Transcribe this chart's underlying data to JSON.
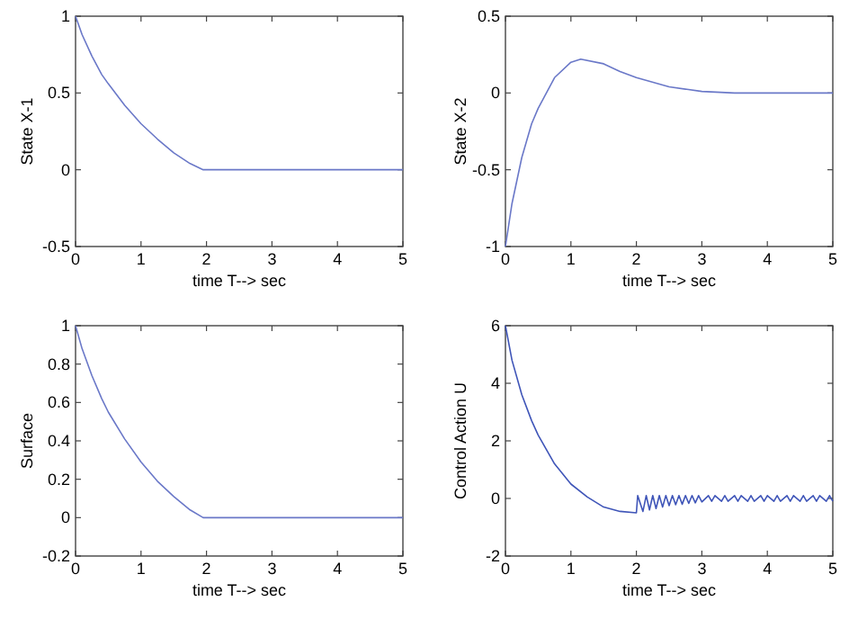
{
  "chart_data": [
    {
      "type": "line",
      "xlabel": "time T--> sec",
      "ylabel": "State X-1",
      "xlim": [
        0,
        5
      ],
      "xticks": [
        0,
        1,
        2,
        3,
        4,
        5
      ],
      "ylim": [
        -0.5,
        1
      ],
      "yticks": [
        -0.5,
        0,
        0.5,
        1
      ],
      "grid": false,
      "series": [
        {
          "color": "#6a78c8",
          "x": [
            0,
            0.1,
            0.25,
            0.4,
            0.5,
            0.75,
            1,
            1.25,
            1.5,
            1.75,
            1.95,
            2,
            2.5,
            3,
            3.5,
            4,
            4.5,
            5
          ],
          "values": [
            1,
            0.88,
            0.74,
            0.62,
            0.56,
            0.42,
            0.3,
            0.2,
            0.11,
            0.04,
            0,
            0,
            0,
            0,
            0,
            0,
            0,
            0
          ]
        }
      ]
    },
    {
      "type": "line",
      "xlabel": "time T--> sec",
      "ylabel": "State X-2",
      "xlim": [
        0,
        5
      ],
      "xticks": [
        0,
        1,
        2,
        3,
        4,
        5
      ],
      "ylim": [
        -1,
        0.5
      ],
      "yticks": [
        -1,
        -0.5,
        0,
        0.5
      ],
      "grid": false,
      "series": [
        {
          "color": "#6a78c8",
          "x": [
            0,
            0.1,
            0.25,
            0.4,
            0.5,
            0.75,
            1,
            1.15,
            1.5,
            1.75,
            2,
            2.5,
            3,
            3.5,
            4,
            4.5,
            5
          ],
          "values": [
            -1,
            -0.72,
            -0.42,
            -0.2,
            -0.1,
            0.1,
            0.2,
            0.22,
            0.19,
            0.14,
            0.1,
            0.04,
            0.01,
            0,
            0,
            0,
            0
          ]
        }
      ]
    },
    {
      "type": "line",
      "xlabel": "time T--> sec",
      "ylabel": "Surface",
      "xlim": [
        0,
        5
      ],
      "xticks": [
        0,
        1,
        2,
        3,
        4,
        5
      ],
      "ylim": [
        -0.2,
        1
      ],
      "yticks": [
        -0.2,
        0,
        0.2,
        0.4,
        0.6,
        0.8,
        1
      ],
      "grid": false,
      "series": [
        {
          "color": "#6a78c8",
          "x": [
            0,
            0.1,
            0.25,
            0.4,
            0.5,
            0.75,
            1,
            1.25,
            1.5,
            1.75,
            1.95,
            2,
            2.5,
            3,
            3.5,
            4,
            4.5,
            5
          ],
          "values": [
            1,
            0.88,
            0.74,
            0.62,
            0.55,
            0.41,
            0.29,
            0.19,
            0.11,
            0.04,
            0,
            0,
            0,
            0,
            0,
            0,
            0,
            0
          ]
        }
      ]
    },
    {
      "type": "line",
      "xlabel": "time T--> sec",
      "ylabel": "Control Action U",
      "xlim": [
        0,
        5
      ],
      "xticks": [
        0,
        1,
        2,
        3,
        4,
        5
      ],
      "ylim": [
        -2,
        6
      ],
      "yticks": [
        -2,
        0,
        2,
        4,
        6
      ],
      "grid": false,
      "series": [
        {
          "color": "#3f55b8",
          "x": [
            0,
            0.1,
            0.25,
            0.4,
            0.5,
            0.75,
            1,
            1.25,
            1.5,
            1.75,
            2,
            2.02,
            2.1,
            2.15,
            2.2,
            2.25,
            2.3,
            2.35,
            2.4,
            2.45,
            2.5,
            2.55,
            2.6,
            2.65,
            2.7,
            2.75,
            2.8,
            2.85,
            2.9,
            2.95,
            3,
            3.1,
            3.15,
            3.2,
            3.3,
            3.35,
            3.4,
            3.5,
            3.55,
            3.6,
            3.7,
            3.75,
            3.8,
            3.9,
            3.95,
            4,
            4.1,
            4.15,
            4.2,
            4.3,
            4.35,
            4.4,
            4.5,
            4.55,
            4.6,
            4.7,
            4.75,
            4.8,
            4.9,
            4.95,
            5
          ],
          "values": [
            6,
            4.8,
            3.6,
            2.7,
            2.2,
            1.2,
            0.5,
            0.05,
            -0.3,
            -0.45,
            -0.5,
            0.1,
            -0.45,
            0.1,
            -0.4,
            0.1,
            -0.35,
            0.1,
            -0.3,
            0.1,
            -0.25,
            0.1,
            -0.22,
            0.1,
            -0.2,
            0.1,
            -0.17,
            0.1,
            -0.15,
            0.1,
            -0.12,
            0.1,
            -0.1,
            0.1,
            -0.1,
            0.1,
            -0.1,
            0.1,
            -0.1,
            0.1,
            -0.1,
            0.1,
            -0.1,
            0.1,
            -0.1,
            0.1,
            -0.1,
            0.1,
            -0.1,
            0.1,
            -0.1,
            0.1,
            -0.1,
            0.1,
            -0.1,
            0.1,
            -0.1,
            0.1,
            -0.1,
            0.1,
            -0.1
          ]
        }
      ]
    }
  ]
}
